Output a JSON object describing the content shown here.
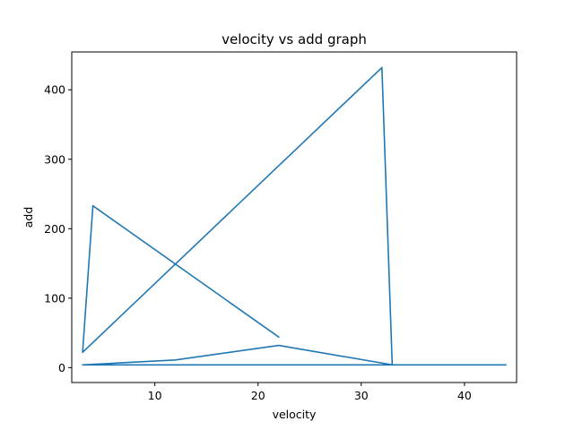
{
  "chart_data": {
    "type": "line",
    "title": "velocity vs add graph",
    "xlabel": "velocity",
    "ylabel": "add",
    "xlim": [
      1.95,
      45.05
    ],
    "ylim": [
      -21.45,
      454.45
    ],
    "xticks": [
      10,
      20,
      30,
      40
    ],
    "yticks": [
      0,
      100,
      200,
      300,
      400
    ],
    "grid": false,
    "series": [
      {
        "color": "#1f77b4",
        "x": [
          22,
          4,
          3,
          32,
          33,
          44,
          3,
          12,
          22,
          33,
          44
        ],
        "y": [
          44,
          233,
          22,
          432,
          4,
          4,
          4,
          11,
          32,
          4,
          4
        ]
      }
    ]
  }
}
